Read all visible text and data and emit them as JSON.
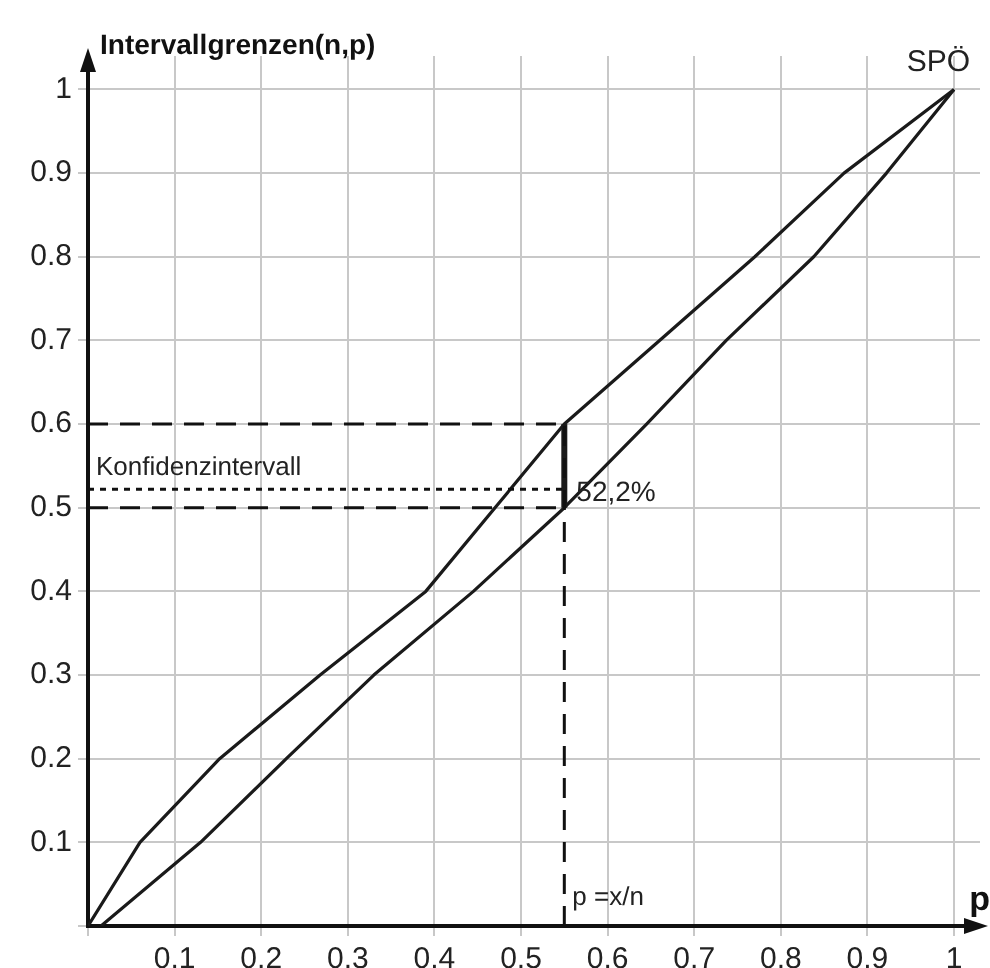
{
  "chart_data": {
    "type": "line",
    "xlabel": "p",
    "ylabel": "Intervallgrenzen(n,p)",
    "series": [
      {
        "color": "#1a1a1a",
        "x": [
          0,
          0.06,
          0.152,
          0.268,
          0.39,
          0.47,
          0.55,
          0.66,
          0.77,
          0.873,
          1
        ],
        "values": [
          0,
          0.1,
          0.2,
          0.3,
          0.4,
          0.5,
          0.6,
          0.7,
          0.8,
          0.9,
          1
        ]
      },
      {
        "color": "#1a1a1a",
        "x": [
          0.015,
          0.13,
          0.229,
          0.33,
          0.445,
          0.55,
          0.645,
          0.737,
          0.838,
          0.922,
          1
        ],
        "values": [
          0,
          0.1,
          0.2,
          0.3,
          0.4,
          0.5,
          0.6,
          0.7,
          0.8,
          0.9,
          1
        ]
      },
      {
        "color": "#1a1a1a",
        "x": [
          0.55,
          0.55
        ],
        "values": [
          0.5,
          0.6
        ]
      }
    ],
    "xlim": [
      0,
      1.03
    ],
    "ylim": [
      0,
      1.04
    ],
    "xticks": [
      {
        "value": 0,
        "label": null
      },
      0.1,
      0.2,
      0.3,
      0.4,
      0.5,
      0.6,
      0.7,
      0.8,
      0.9,
      1
    ],
    "yticks": [
      {
        "value": 0,
        "label": null
      },
      0.1,
      0.2,
      0.3,
      0.4,
      0.5,
      0.6,
      0.7,
      0.8,
      0.9,
      1
    ],
    "ref_lines": [
      {
        "axis": "y",
        "value": 0.6,
        "line_style": "dashed"
      },
      {
        "axis": "y",
        "value": 0.5,
        "line_style": "dashed"
      },
      {
        "axis": "y",
        "value": 0.522,
        "line_style": "dotted",
        "label": "52,2%"
      },
      {
        "axis": "x",
        "value": 0.55,
        "line_style": "dashed",
        "label": "p =x/n"
      }
    ],
    "annotations": [
      {
        "text": "Konfidenzintervall",
        "x": 0,
        "y": 0.53
      },
      {
        "text": "SPÖ",
        "x": 1,
        "y": 1
      }
    ],
    "grid": true,
    "legend": false,
    "marker": "none",
    "line_style": "solid"
  }
}
